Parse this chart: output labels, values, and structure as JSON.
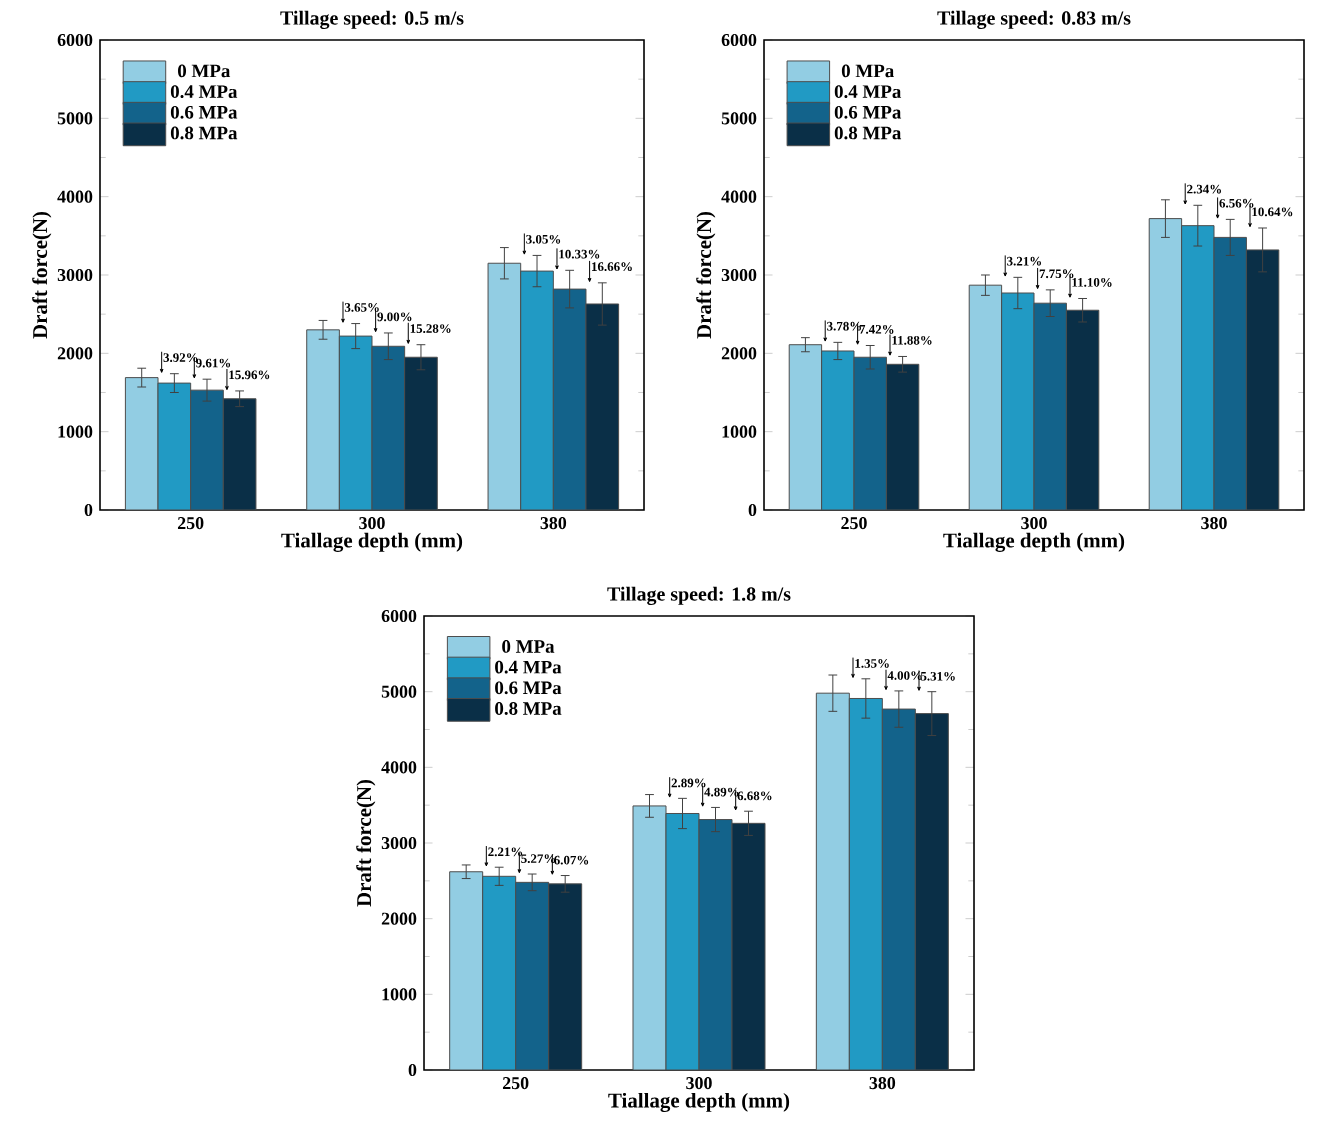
{
  "chart_data": [
    {
      "type": "bar",
      "title": "Tillage speed: 0.5 m/s",
      "xlabel": "Tiallage depth (mm)",
      "ylabel": "Draft force(N)",
      "categories": [
        "250",
        "300",
        "380"
      ],
      "ylim": [
        0,
        6000
      ],
      "yticks": [
        0,
        1000,
        2000,
        3000,
        4000,
        5000,
        6000
      ],
      "legend": "top left",
      "series": [
        {
          "name": "0 MPa",
          "color": "#92cde3",
          "values": [
            1690,
            2300,
            3150
          ],
          "errors": [
            120,
            120,
            200
          ]
        },
        {
          "name": "0.4 MPa",
          "color": "#219ac4",
          "values": [
            1620,
            2220,
            3050
          ],
          "errors": [
            120,
            160,
            200
          ]
        },
        {
          "name": "0.6 MPa",
          "color": "#13638b",
          "values": [
            1530,
            2090,
            2820
          ],
          "errors": [
            140,
            170,
            240
          ]
        },
        {
          "name": "0.8 MPa",
          "color": "#0a2f47",
          "values": [
            1420,
            1950,
            2630
          ],
          "errors": [
            100,
            160,
            270
          ]
        }
      ],
      "annotations": [
        "3.92%",
        "9.61%",
        "15.96%",
        "3.65%",
        "9.00%",
        "15.28%",
        "3.05%",
        "10.33%",
        "16.66%"
      ]
    },
    {
      "type": "bar",
      "title": "Tillage speed: 0.83 m/s",
      "xlabel": "Tiallage depth (mm)",
      "ylabel": "Draft force(N)",
      "categories": [
        "250",
        "300",
        "380"
      ],
      "ylim": [
        0,
        6000
      ],
      "yticks": [
        0,
        1000,
        2000,
        3000,
        4000,
        5000,
        6000
      ],
      "legend": "top left",
      "series": [
        {
          "name": "0 MPa",
          "color": "#92cde3",
          "values": [
            2110,
            2870,
            3720
          ],
          "errors": [
            90,
            130,
            240
          ]
        },
        {
          "name": "0.4 MPa",
          "color": "#219ac4",
          "values": [
            2030,
            2770,
            3630
          ],
          "errors": [
            110,
            200,
            260
          ]
        },
        {
          "name": "0.6 MPa",
          "color": "#13638b",
          "values": [
            1950,
            2640,
            3480
          ],
          "errors": [
            150,
            170,
            230
          ]
        },
        {
          "name": "0.8 MPa",
          "color": "#0a2f47",
          "values": [
            1860,
            2550,
            3320
          ],
          "errors": [
            100,
            150,
            280
          ]
        }
      ],
      "annotations": [
        "3.78%",
        "7.42%",
        "11.88%",
        "3.21%",
        "7.75%",
        "11.10%",
        "2.34%",
        "6.56%",
        "10.64%"
      ]
    },
    {
      "type": "bar",
      "title": "Tillage speed: 1.8 m/s",
      "xlabel": "Tiallage depth (mm)",
      "ylabel": "Draft force(N)",
      "categories": [
        "250",
        "300",
        "380"
      ],
      "ylim": [
        0,
        6000
      ],
      "yticks": [
        0,
        1000,
        2000,
        3000,
        4000,
        5000,
        6000
      ],
      "legend": "top left",
      "series": [
        {
          "name": "0 MPa",
          "color": "#92cde3",
          "values": [
            2620,
            3490,
            4980
          ],
          "errors": [
            90,
            150,
            240
          ]
        },
        {
          "name": "0.4 MPa",
          "color": "#219ac4",
          "values": [
            2560,
            3390,
            4910
          ],
          "errors": [
            120,
            200,
            260
          ]
        },
        {
          "name": "0.6 MPa",
          "color": "#13638b",
          "values": [
            2480,
            3310,
            4770
          ],
          "errors": [
            110,
            160,
            240
          ]
        },
        {
          "name": "0.8 MPa",
          "color": "#0a2f47",
          "values": [
            2460,
            3260,
            4710
          ],
          "errors": [
            110,
            160,
            290
          ]
        }
      ],
      "annotations": [
        "2.21%",
        "5.27%",
        "6.07%",
        "2.89%",
        "4.89%",
        "6.68%",
        "1.35%",
        "4.00%",
        "5.31%"
      ]
    }
  ]
}
